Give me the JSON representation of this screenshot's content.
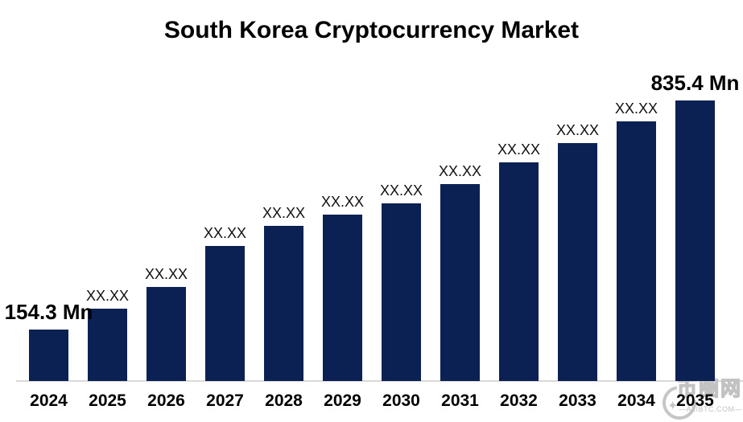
{
  "title": "South Korea Cryptocurrency Market",
  "chart_data": {
    "type": "bar",
    "title": "South Korea Cryptocurrency Market",
    "xlabel": "",
    "ylabel": "",
    "categories": [
      "2024",
      "2025",
      "2026",
      "2027",
      "2028",
      "2029",
      "2030",
      "2031",
      "2032",
      "2033",
      "2034",
      "2035"
    ],
    "values": [
      154.3,
      216.6,
      279.0,
      401.2,
      461.1,
      495.0,
      528.4,
      586.0,
      650.7,
      708.2,
      773.0,
      835.4
    ],
    "value_labels": [
      "154.3 Mn",
      "XX.XX",
      "XX.XX",
      "XX.XX",
      "XX.XX",
      "XX.XX",
      "XX.XX",
      "XX.XX",
      "XX.XX",
      "XX.XX",
      "XX.XX",
      "835.4 Mn"
    ],
    "value_unit": "Mn",
    "ylim": [
      0,
      880
    ],
    "grid": false,
    "legend": false,
    "bar_color": "#0b2153",
    "axis_color": "#d9d9d9",
    "label_color": "#111111"
  },
  "watermark": {
    "logo_text": "币圈网",
    "subtext": "—ALIBTC.COM—",
    "star_icon": "✦",
    "color": "#c2c2c2"
  }
}
